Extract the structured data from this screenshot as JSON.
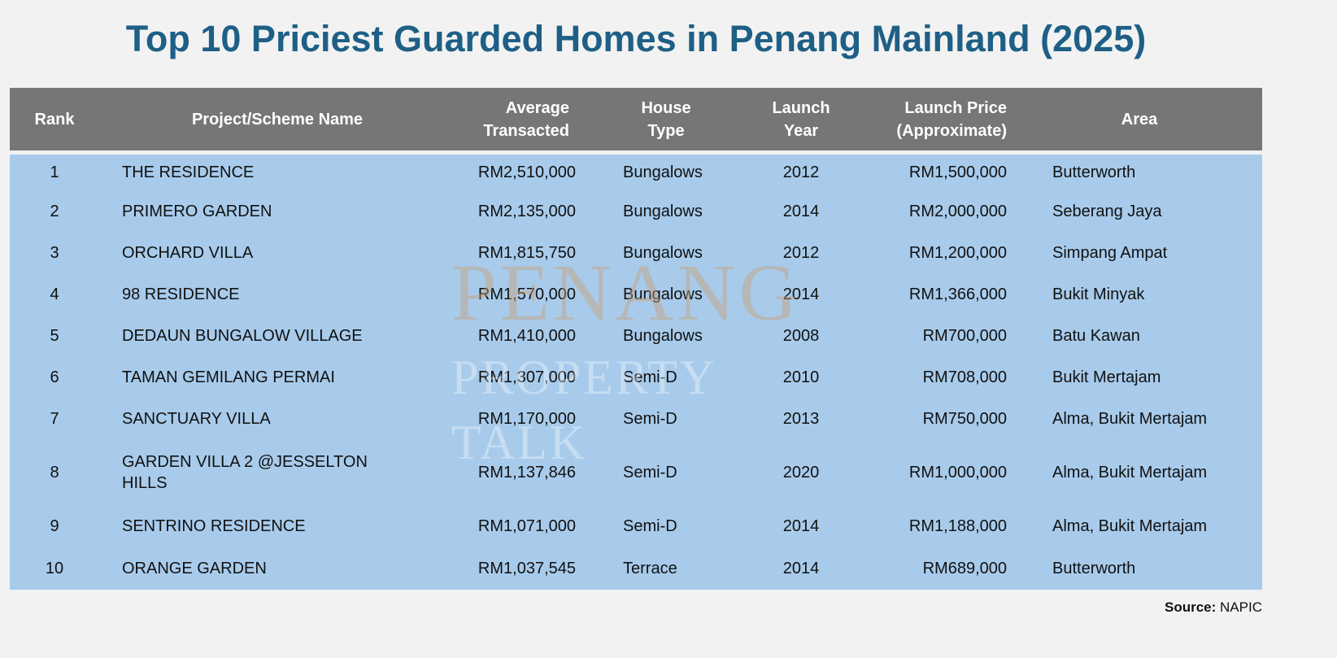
{
  "title": "Top 10 Priciest Guarded Homes in Penang Mainland (2025)",
  "watermark": {
    "line1": "PENANG",
    "line2": "PROPERTY TALK"
  },
  "source": {
    "label": "Source:",
    "value": "NAPIC"
  },
  "colors": {
    "title": "#1e5f86",
    "header_bg": "#767676",
    "body_bg": "#a8cbeb",
    "page_bg": "#f2f2f2"
  },
  "chart_data": {
    "type": "table",
    "title": "Top 10 Priciest Guarded Homes in Penang Mainland (2025)",
    "columns": [
      "Rank",
      "Project/Scheme Name",
      "Average Transacted",
      "House Type",
      "Launch Year",
      "Launch Price (Approximate)",
      "Area"
    ],
    "header_lines": [
      [
        "Rank"
      ],
      [
        "Project/Scheme Name"
      ],
      [
        "Average",
        "Transacted"
      ],
      [
        "House",
        "Type"
      ],
      [
        "Launch",
        "Year"
      ],
      [
        "Launch Price",
        "(Approximate)"
      ],
      [
        "Area"
      ]
    ],
    "rows": [
      [
        "1",
        "THE RESIDENCE",
        "RM2,510,000",
        "Bungalows",
        "2012",
        "RM1,500,000",
        "Butterworth"
      ],
      [
        "2",
        "PRIMERO GARDEN",
        "RM2,135,000",
        "Bungalows",
        "2014",
        "RM2,000,000",
        "Seberang Jaya"
      ],
      [
        "3",
        "ORCHARD VILLA",
        "RM1,815,750",
        "Bungalows",
        "2012",
        "RM1,200,000",
        "Simpang Ampat"
      ],
      [
        "4",
        "98 RESIDENCE",
        "RM1,570,000",
        "Bungalows",
        "2014",
        "RM1,366,000",
        "Bukit Minyak"
      ],
      [
        "5",
        "DEDAUN BUNGALOW VILLAGE",
        "RM1,410,000",
        "Bungalows",
        "2008",
        "RM700,000",
        "Batu Kawan"
      ],
      [
        "6",
        "TAMAN GEMILANG PERMAI",
        "RM1,307,000",
        "Semi-D",
        "2010",
        "RM708,000",
        "Bukit Mertajam"
      ],
      [
        "7",
        "SANCTUARY VILLA",
        "RM1,170,000",
        "Semi-D",
        "2013",
        "RM750,000",
        "Alma, Bukit Mertajam"
      ],
      [
        "8",
        "GARDEN VILLA 2 @JESSELTON HILLS",
        "RM1,137,846",
        "Semi-D",
        "2020",
        "RM1,000,000",
        "Alma, Bukit Mertajam"
      ],
      [
        "9",
        "SENTRINO RESIDENCE",
        "RM1,071,000",
        "Semi-D",
        "2014",
        "RM1,188,000",
        "Alma, Bukit Mertajam"
      ],
      [
        "10",
        "ORANGE GARDEN",
        "RM1,037,545",
        "Terrace",
        "2014",
        "RM689,000",
        "Butterworth"
      ]
    ]
  }
}
